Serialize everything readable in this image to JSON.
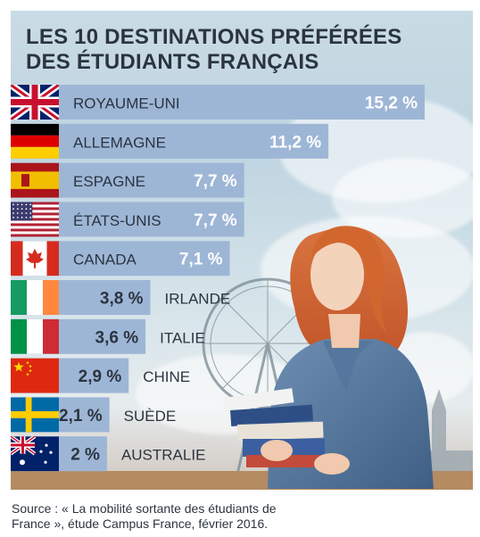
{
  "title_lines": [
    "LES 10 DESTINATIONS PRÉFÉRÉES",
    "DES ÉTUDIANTS FRANÇAIS"
  ],
  "source_lines": [
    "Source : « La mobilité sortante des étudiants de",
    "France », étude Campus France, février 2016."
  ],
  "colors": {
    "bar": "#9eb6d6",
    "text": "#2b3440",
    "white": "#ffffff"
  },
  "chart_data": {
    "type": "bar",
    "orientation": "horizontal",
    "unit": "%",
    "categories": [
      "ROYAUME-UNI",
      "ALLEMAGNE",
      "ESPAGNE",
      "ÉTATS-UNIS",
      "CANADA",
      "IRLANDE",
      "ITALIE",
      "CHINE",
      "SUÈDE",
      "AUSTRALIE"
    ],
    "values": [
      15.2,
      11.2,
      7.7,
      7.7,
      7.1,
      3.8,
      3.6,
      2.9,
      2.1,
      2
    ],
    "value_labels": [
      "15,2 %",
      "11,2 %",
      "7,7 %",
      "7,7 %",
      "7,1 %",
      "3,8 %",
      "3,6 %",
      "2,9 %",
      "2,1 %",
      "2 %"
    ],
    "flag_icons": [
      "uk-flag-icon",
      "germany-flag-icon",
      "spain-flag-icon",
      "usa-flag-icon",
      "canada-flag-icon",
      "ireland-flag-icon",
      "italy-flag-icon",
      "china-flag-icon",
      "sweden-flag-icon",
      "australia-flag-icon"
    ]
  }
}
